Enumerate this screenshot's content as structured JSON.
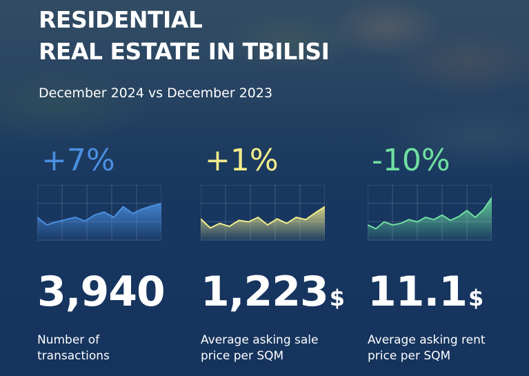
{
  "header": {
    "title_line1": "RESIDENTIAL",
    "title_line2": "REAL ESTATE IN TBILISI",
    "subtitle": "December 2024 vs December 2023"
  },
  "stats": [
    {
      "change": "+7%",
      "color": "#4a8fe0",
      "value": "3,940",
      "unit": "",
      "label_line1": "Number of",
      "label_line2": "transactions",
      "chart_data": {
        "type": "area",
        "values": [
          30,
          20,
          24,
          27,
          30,
          25,
          33,
          37,
          30,
          44,
          35,
          41,
          45,
          48
        ]
      }
    },
    {
      "change": "+1%",
      "color": "#f2ec8a",
      "value": "1,223",
      "unit": "$",
      "label_line1": "Average asking sale",
      "label_line2": "price per SQM",
      "chart_data": {
        "type": "area",
        "values": [
          28,
          16,
          22,
          18,
          26,
          24,
          30,
          20,
          28,
          22,
          30,
          27,
          36,
          44
        ]
      }
    },
    {
      "change": "-10%",
      "color": "#6fe0a0",
      "value": "11.1",
      "unit": "$",
      "label_line1": "Average asking rent",
      "label_line2": "price per SQM",
      "chart_data": {
        "type": "area",
        "values": [
          20,
          15,
          24,
          20,
          22,
          27,
          24,
          30,
          27,
          33,
          26,
          31,
          39,
          30,
          40,
          56
        ]
      }
    }
  ]
}
